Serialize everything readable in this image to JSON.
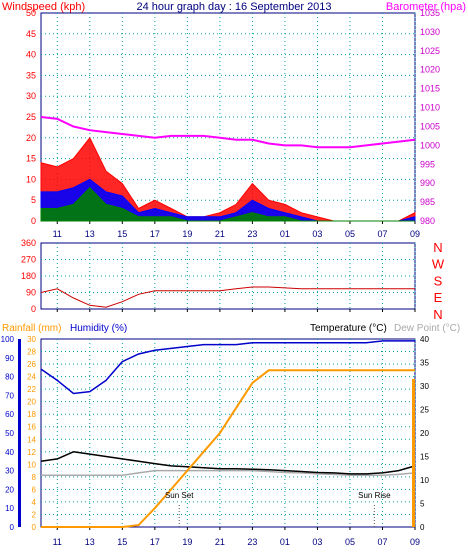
{
  "header": {
    "left_label": "Windspeed (kph)",
    "title": "24 hour graph day : 16 September 2013",
    "right_label": "Barometer (hpa)"
  },
  "colors": {
    "wind_red": "#ff0000",
    "wind_blue": "#0000ff",
    "wind_green": "#008000",
    "barometer": "#ff00ff",
    "baro_axis": "#cc00cc",
    "wind_dir": "#cc0000",
    "humidity": "#0000cc",
    "rain": "#ff9900",
    "temp": "#000000",
    "dew": "#aaaaaa",
    "grid": "#00a0a0",
    "axis_dark": "#000080"
  },
  "x_ticks": [
    "11",
    "13",
    "15",
    "17",
    "19",
    "21",
    "23",
    "01",
    "03",
    "05",
    "07",
    "09"
  ],
  "chart_data": [
    {
      "type": "area",
      "panel": "wind_barometer",
      "x": [
        "10",
        "11",
        "12",
        "13",
        "14",
        "15",
        "16",
        "17",
        "18",
        "19",
        "20",
        "21",
        "22",
        "23",
        "00",
        "01",
        "02",
        "03",
        "04",
        "05",
        "06",
        "07",
        "08",
        "09"
      ],
      "left_axis": {
        "label": "Windspeed (kph)",
        "ylim": [
          0,
          50
        ],
        "ticks": [
          "0",
          "5",
          "10",
          "15",
          "20",
          "25",
          "30",
          "35",
          "40",
          "45",
          "50"
        ]
      },
      "right_axis": {
        "label": "Barometer (hpa)",
        "ylim": [
          980,
          1035
        ],
        "ticks": [
          "980",
          "985",
          "990",
          "995",
          "1000",
          "1005",
          "1010",
          "1015",
          "1020",
          "1025",
          "1030",
          "1035"
        ]
      },
      "series": [
        {
          "name": "Windspeed",
          "values": [
            14,
            13,
            15,
            20,
            12,
            9,
            3,
            5,
            3,
            1,
            1,
            2,
            4,
            9,
            5,
            4,
            2,
            1,
            0,
            0,
            0,
            0,
            0,
            2
          ]
        },
        {
          "name": "",
          "values": [
            7,
            7,
            8,
            10,
            7,
            6,
            2,
            3,
            2,
            1,
            1,
            1,
            2,
            5,
            3,
            2,
            1,
            0,
            0,
            0,
            0,
            0,
            0,
            1
          ]
        },
        {
          "name": "",
          "values": [
            3,
            3,
            4,
            8,
            4,
            3,
            1,
            1,
            1,
            0,
            0,
            0,
            1,
            2,
            1,
            1,
            0,
            0,
            0,
            0,
            0,
            0,
            0,
            0
          ]
        },
        {
          "name": "Barometer",
          "values": [
            1007.5,
            1007,
            1005,
            1004,
            1003.5,
            1003,
            1002.5,
            1002,
            1002.5,
            1002.5,
            1002.5,
            1002,
            1001.5,
            1001.5,
            1000.5,
            1000,
            1000,
            999.5,
            999.5,
            999.5,
            1000,
            1000.5,
            1001,
            1001.5
          ]
        }
      ],
      "grid": true
    },
    {
      "type": "line",
      "panel": "wind_direction",
      "x": [
        "10",
        "11",
        "12",
        "13",
        "14",
        "15",
        "16",
        "17",
        "18",
        "19",
        "20",
        "21",
        "22",
        "23",
        "00",
        "01",
        "02",
        "03",
        "04",
        "05",
        "06",
        "07",
        "08",
        "09"
      ],
      "ylim": [
        0,
        360
      ],
      "yticks": [
        "0",
        "90",
        "180",
        "270",
        "360"
      ],
      "right_labels": [
        "N",
        "W",
        "S",
        "E",
        "N"
      ],
      "series": [
        {
          "name": "Wind Direction",
          "values": [
            90,
            110,
            60,
            20,
            10,
            40,
            80,
            100,
            100,
            100,
            100,
            100,
            110,
            120,
            120,
            115,
            110,
            110,
            110,
            110,
            110,
            110,
            110,
            110
          ]
        }
      ],
      "grid": true
    },
    {
      "type": "line",
      "panel": "rain_humidity_temp",
      "x": [
        "10",
        "11",
        "12",
        "13",
        "14",
        "15",
        "16",
        "17",
        "18",
        "19",
        "20",
        "21",
        "22",
        "23",
        "00",
        "01",
        "02",
        "03",
        "04",
        "05",
        "06",
        "07",
        "08",
        "09"
      ],
      "axes": [
        {
          "label": "Humidity (%)",
          "ylim": [
            0,
            100
          ],
          "ticks": [
            "0",
            "10",
            "20",
            "30",
            "40",
            "50",
            "60",
            "70",
            "80",
            "90",
            "100"
          ]
        },
        {
          "label": "Rainfall (mm)",
          "ylim": [
            0,
            30
          ],
          "ticks": [
            "0",
            "2",
            "4",
            "6",
            "8",
            "10",
            "12",
            "14",
            "16",
            "18",
            "20",
            "22",
            "24",
            "26",
            "28",
            "30"
          ]
        },
        {
          "label": "Temperature (°C)",
          "ylim": [
            0,
            40
          ],
          "ticks": [
            "0",
            "5",
            "10",
            "15",
            "20",
            "25",
            "30",
            "35",
            "40"
          ]
        },
        {
          "label": "Dew Point (°C)"
        }
      ],
      "series": [
        {
          "name": "Humidity",
          "values": [
            84,
            78,
            71,
            72,
            78,
            88,
            92,
            94,
            95,
            96,
            97,
            97,
            97,
            98,
            98,
            98,
            98,
            98,
            98,
            98,
            98,
            99,
            99,
            99
          ]
        },
        {
          "name": "Rainfall",
          "values": [
            0,
            0,
            0,
            0,
            0,
            0,
            0.3,
            3,
            6,
            9,
            12,
            15,
            19,
            23,
            25,
            25,
            25,
            25,
            25,
            25,
            25,
            25,
            25,
            25
          ]
        },
        {
          "name": "Temperature",
          "values": [
            14,
            14.5,
            16,
            15.5,
            15,
            14.5,
            14,
            13.5,
            13,
            12.8,
            12.6,
            12.4,
            12.4,
            12.3,
            12.2,
            12.0,
            11.8,
            11.6,
            11.5,
            11.3,
            11.3,
            11.5,
            12.0,
            13.0
          ]
        },
        {
          "name": "Dew Point",
          "values": [
            11,
            11,
            11,
            11,
            11,
            11,
            11.5,
            12,
            12,
            12,
            12,
            12,
            12,
            12,
            11.8,
            11.6,
            11.5,
            11.3,
            11.2,
            11,
            11,
            11,
            11.2,
            11.5
          ]
        }
      ],
      "annotations": [
        {
          "text": "Sun Set",
          "x": "18.5"
        },
        {
          "text": "Sun Rise",
          "x": "06.5"
        }
      ],
      "grid": true
    }
  ]
}
